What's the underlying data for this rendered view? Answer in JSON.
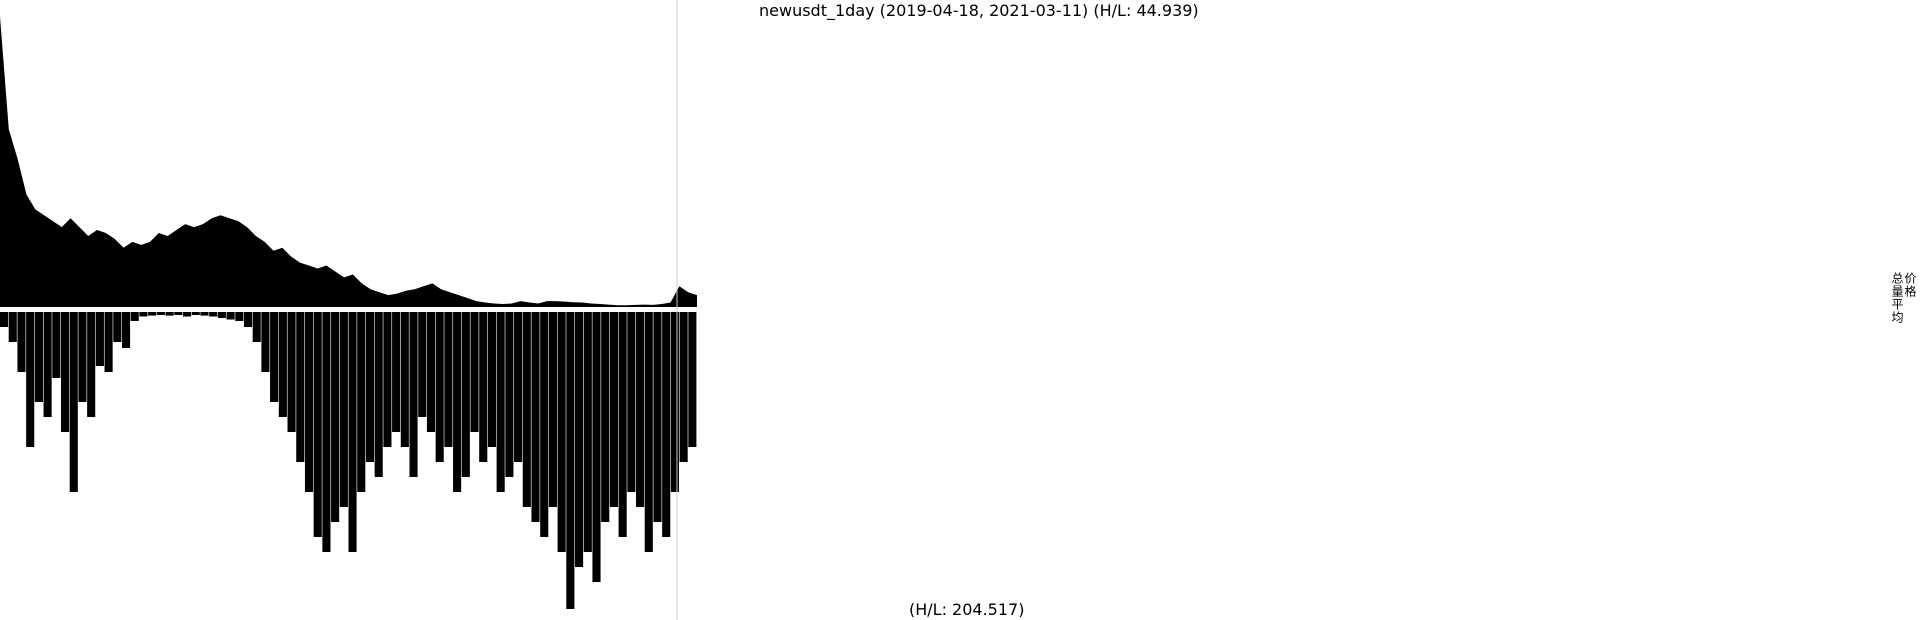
{
  "title": "newusdt_1day (2019-04-18, 2021-03-11) (H/L: 44.939)",
  "volume_hl": "(H/L: 204.517)",
  "legend": [
    "价格",
    "总量平均"
  ],
  "colors": {
    "background": "#ffffff",
    "bars": "#000000",
    "cursor_line": "#c8c8c8",
    "separator": "#ffffff"
  },
  "chart_data": [
    {
      "type": "area",
      "panel": "price",
      "title": "newusdt_1day (2019-04-18, 2021-03-11) (H/L: 44.939)",
      "x_start": "2019-04-18",
      "x_end": "2021-03-11",
      "x_unit": "day",
      "high_low_ratio": 44.939,
      "y_normalized": true,
      "series": [
        {
          "name": "价格",
          "values": [
            0.98,
            0.6,
            0.5,
            0.38,
            0.33,
            0.31,
            0.29,
            0.27,
            0.3,
            0.27,
            0.24,
            0.26,
            0.25,
            0.23,
            0.2,
            0.22,
            0.21,
            0.22,
            0.25,
            0.24,
            0.26,
            0.28,
            0.27,
            0.28,
            0.3,
            0.31,
            0.3,
            0.29,
            0.27,
            0.24,
            0.22,
            0.19,
            0.2,
            0.17,
            0.15,
            0.14,
            0.13,
            0.14,
            0.12,
            0.1,
            0.11,
            0.08,
            0.06,
            0.05,
            0.04,
            0.045,
            0.055,
            0.06,
            0.07,
            0.08,
            0.06,
            0.05,
            0.04,
            0.03,
            0.02,
            0.015,
            0.012,
            0.01,
            0.012,
            0.02,
            0.015,
            0.012,
            0.02,
            0.02,
            0.018,
            0.016,
            0.015,
            0.012,
            0.01,
            0.008,
            0.006,
            0.006,
            0.007,
            0.008,
            0.007,
            0.01,
            0.015,
            0.07,
            0.05,
            0.04
          ]
        }
      ]
    },
    {
      "type": "bar",
      "panel": "volume",
      "title": "(H/L: 204.517)",
      "x_start": "2019-04-18",
      "x_end": "2021-03-11",
      "x_unit": "day",
      "high_low_ratio": 204.517,
      "y_normalized": true,
      "orientation": "downward",
      "series": [
        {
          "name": "总量平均",
          "values": [
            0.05,
            0.1,
            0.2,
            0.45,
            0.3,
            0.35,
            0.22,
            0.4,
            0.6,
            0.3,
            0.35,
            0.18,
            0.2,
            0.1,
            0.12,
            0.03,
            0.015,
            0.012,
            0.01,
            0.012,
            0.01,
            0.015,
            0.01,
            0.012,
            0.015,
            0.02,
            0.025,
            0.03,
            0.05,
            0.1,
            0.2,
            0.3,
            0.35,
            0.4,
            0.5,
            0.6,
            0.75,
            0.8,
            0.7,
            0.65,
            0.8,
            0.6,
            0.5,
            0.55,
            0.45,
            0.4,
            0.45,
            0.55,
            0.35,
            0.4,
            0.5,
            0.45,
            0.6,
            0.55,
            0.4,
            0.5,
            0.45,
            0.6,
            0.55,
            0.5,
            0.65,
            0.7,
            0.75,
            0.65,
            0.8,
            0.99,
            0.85,
            0.8,
            0.9,
            0.7,
            0.65,
            0.75,
            0.6,
            0.65,
            0.8,
            0.7,
            0.75,
            0.6,
            0.5,
            0.45
          ]
        }
      ]
    }
  ]
}
